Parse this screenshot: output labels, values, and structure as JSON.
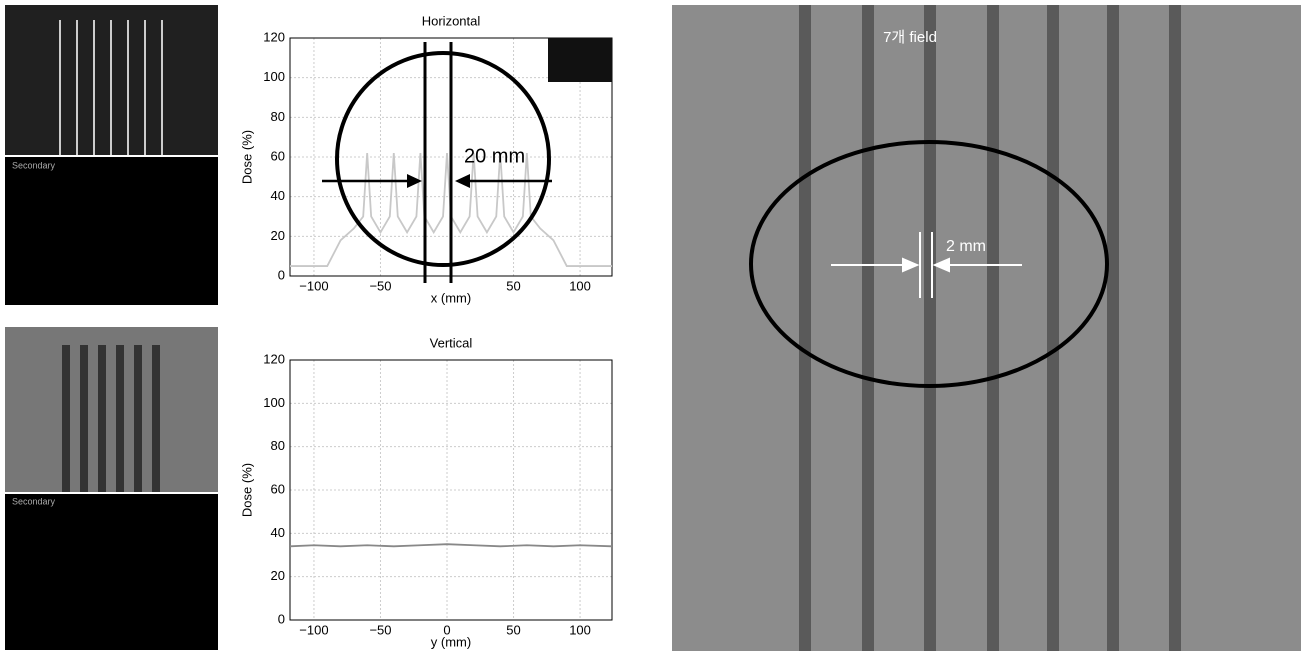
{
  "chart_data": [
    {
      "type": "line",
      "title": "Horizontal",
      "xlabel": "x (mm)",
      "ylabel": "Dose (%)",
      "xlim": [
        -118,
        124
      ],
      "ylim": [
        0,
        120
      ],
      "xticks": [
        {
          "value": -100,
          "label": "−100"
        },
        {
          "value": -50,
          "label": "−50"
        },
        50,
        100
      ],
      "yticks": [
        0,
        20,
        40,
        60,
        80,
        100,
        120
      ],
      "grid": true,
      "color": "#c8c8c8",
      "x": [
        -118,
        -90,
        -80,
        -70,
        -63,
        -60,
        -57,
        -50,
        -43,
        -40,
        -37,
        -30,
        -23,
        -20,
        -17,
        -10,
        -3,
        0,
        3,
        10,
        17,
        20,
        23,
        30,
        37,
        40,
        43,
        50,
        57,
        60,
        63,
        70,
        80,
        90,
        124
      ],
      "values": [
        5,
        5,
        18,
        24,
        30,
        62,
        30,
        22,
        30,
        62,
        30,
        22,
        30,
        62,
        30,
        22,
        30,
        62,
        30,
        22,
        30,
        62,
        30,
        22,
        30,
        62,
        30,
        22,
        30,
        62,
        30,
        24,
        18,
        5,
        5
      ],
      "annotation": "20 mm"
    },
    {
      "type": "line",
      "title": "Vertical",
      "xlabel": "y (mm)",
      "ylabel": "Dose (%)",
      "xlim": [
        -118,
        124
      ],
      "ylim": [
        0,
        120
      ],
      "xticks": [
        {
          "value": -100,
          "label": "−100"
        },
        {
          "value": -50,
          "label": "−50"
        },
        0,
        50,
        100
      ],
      "yticks": [
        0,
        20,
        40,
        60,
        80,
        100,
        120
      ],
      "grid": true,
      "color": "#888888",
      "x": [
        -118,
        -100,
        -80,
        -60,
        -40,
        -20,
        0,
        20,
        40,
        60,
        80,
        100,
        124
      ],
      "values": [
        34,
        34.5,
        34,
        34.5,
        34,
        34.5,
        35,
        34.5,
        34,
        34.5,
        34,
        34.5,
        34
      ]
    }
  ],
  "film": {
    "label": "7개 field",
    "annotation": "2 mm"
  },
  "thumbnails": [
    {
      "label": "Secondary"
    },
    {
      "label": "Secondary"
    }
  ]
}
